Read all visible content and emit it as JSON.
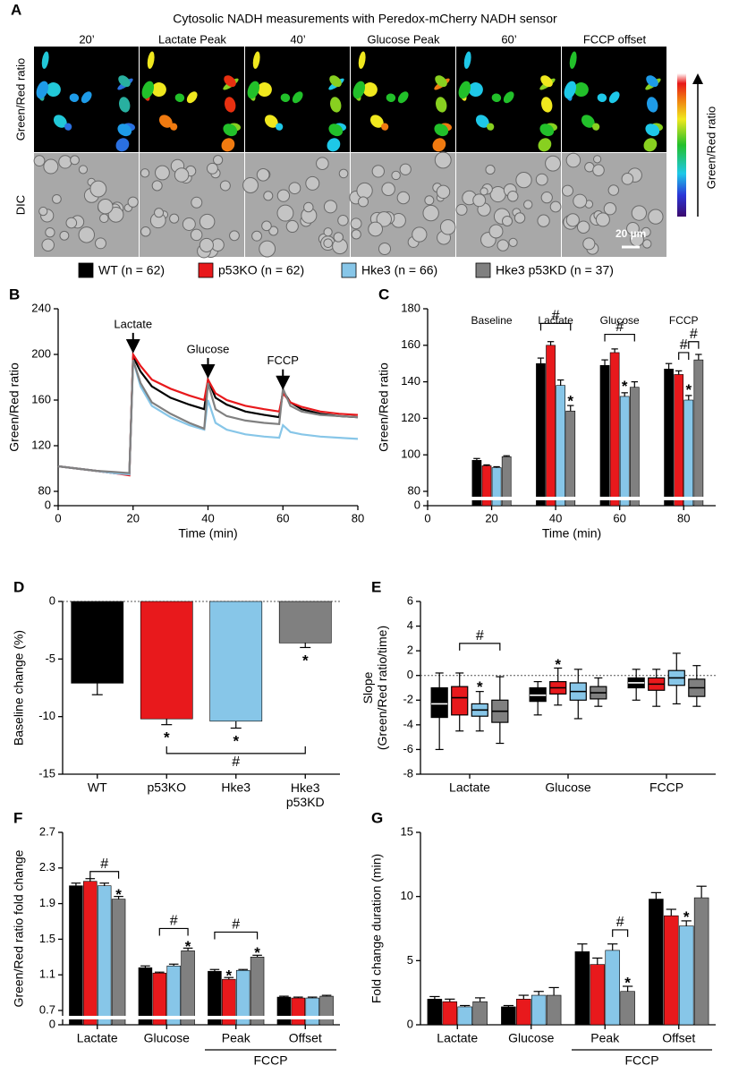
{
  "panel_a": {
    "label": "A",
    "title": "Cytosolic NADH measurements with Peredox-mCherry NADH sensor",
    "columns": [
      "20’",
      "Lactate Peak",
      "40’",
      "Glucose Peak",
      "60’",
      "FCCP offset"
    ],
    "rows": [
      "Green/Red ratio",
      "DIC"
    ],
    "scale_bar": "20 µm",
    "colorbar_label": "Green/Red ratio"
  },
  "legend": [
    {
      "name": "WT (n = 62)",
      "color": "#000000"
    },
    {
      "name": "p53KO (n = 62)",
      "color": "#e8191c"
    },
    {
      "name": "Hke3 (n = 66)",
      "color": "#87c6e8"
    },
    {
      "name": "Hke3 p53KD (n = 37)",
      "color": "#808080"
    }
  ],
  "chart_data": [
    {
      "type": "line",
      "panel": "B",
      "xlabel": "Time (min)",
      "ylabel": "Green/Red ratio",
      "x": [
        0,
        5,
        10,
        15,
        19,
        20,
        22,
        25,
        30,
        35,
        39,
        40,
        42,
        45,
        50,
        55,
        59,
        60,
        62,
        65,
        70,
        75,
        80
      ],
      "series": [
        {
          "values": [
            102,
            100,
            98,
            96,
            95,
            198,
            185,
            172,
            162,
            156,
            152,
            178,
            162,
            156,
            150,
            147,
            145,
            168,
            158,
            152,
            148,
            146,
            145
          ]
        },
        {
          "values": [
            102,
            100,
            98,
            96,
            94,
            200,
            190,
            178,
            170,
            164,
            160,
            178,
            166,
            160,
            155,
            152,
            150,
            166,
            158,
            154,
            150,
            148,
            147
          ]
        },
        {
          "values": [
            102,
            100,
            98,
            96,
            95,
            195,
            172,
            155,
            145,
            138,
            134,
            160,
            140,
            134,
            130,
            128,
            127,
            138,
            132,
            130,
            128,
            127,
            126
          ]
        },
        {
          "values": [
            102,
            100,
            98,
            97,
            96,
            195,
            175,
            158,
            148,
            140,
            135,
            175,
            152,
            146,
            142,
            140,
            139,
            170,
            155,
            150,
            147,
            146,
            145
          ]
        }
      ],
      "xlim": [
        0,
        80
      ],
      "xticks": [
        0,
        20,
        40,
        60,
        80
      ],
      "ylim": [
        0,
        240
      ],
      "ybreak": [
        0,
        80
      ],
      "yticks": [
        0,
        80,
        120,
        160,
        200,
        240
      ],
      "annotations": [
        {
          "text": "Lactate",
          "x": 20,
          "y": 204
        },
        {
          "text": "Glucose",
          "x": 40,
          "y": 182
        },
        {
          "text": "FCCP",
          "x": 60,
          "y": 172
        }
      ]
    },
    {
      "type": "bar",
      "panel": "C",
      "xlabel": "Time (min)",
      "ylabel": "Green/Red ratio",
      "categories": [
        "Baseline",
        "Lactate",
        "Glucose",
        "FCCP"
      ],
      "x": [
        20,
        40,
        60,
        80
      ],
      "series": [
        {
          "values": [
            97,
            150,
            149,
            147
          ],
          "errors": [
            1,
            3,
            3,
            3
          ]
        },
        {
          "values": [
            94,
            160,
            156,
            144
          ],
          "errors": [
            0.5,
            2,
            2,
            2
          ]
        },
        {
          "values": [
            93,
            138,
            132,
            130
          ],
          "errors": [
            0.5,
            3,
            2,
            2.5
          ]
        },
        {
          "values": [
            99,
            124,
            137,
            152
          ],
          "errors": [
            0.5,
            3,
            3,
            3
          ]
        }
      ],
      "xlim": [
        0,
        90
      ],
      "xticks": [
        0,
        20,
        40,
        60,
        80
      ],
      "ylim": [
        0,
        180
      ],
      "ybreak": [
        0,
        80
      ],
      "yticks": [
        0,
        80,
        100,
        120,
        140,
        160,
        180
      ],
      "stars": [
        {
          "text": "*",
          "group": 1,
          "series": 3,
          "y": 131
        },
        {
          "text": "*",
          "group": 2,
          "series": 2,
          "y": 139
        },
        {
          "text": "*",
          "group": 3,
          "series": 2,
          "y": 137
        }
      ],
      "brackets": [
        {
          "text": "#",
          "from": [
            1,
            0
          ],
          "to": [
            1,
            3
          ],
          "y": 172
        },
        {
          "text": "#",
          "from": [
            2,
            0
          ],
          "to": [
            2,
            3
          ],
          "y": 166
        },
        {
          "text": "#",
          "from": [
            3,
            1
          ],
          "to": [
            3,
            2
          ],
          "y": 156
        },
        {
          "text": "#",
          "from": [
            3,
            2
          ],
          "to": [
            3,
            3
          ],
          "y": 162
        }
      ]
    },
    {
      "type": "bar",
      "panel": "D",
      "ylabel": "Baseline change (%)",
      "color_by": "category",
      "categories": [
        "WT",
        "p53KO",
        "Hke3",
        [
          "Hke3",
          "p53KD"
        ]
      ],
      "series": [
        {
          "values": [
            -7.1,
            -10.2,
            -10.4,
            -3.6
          ],
          "errors": [
            1.0,
            0.5,
            0.6,
            0.4
          ]
        }
      ],
      "ylim": [
        -15,
        0
      ],
      "yticks": [
        -15,
        -10,
        -5,
        0
      ],
      "hline": 0,
      "stars": [
        {
          "text": "*",
          "group": 1,
          "series": 0,
          "y": -11.6
        },
        {
          "text": "*",
          "group": 2,
          "series": 0,
          "y": -11.9
        },
        {
          "text": "*",
          "group": 3,
          "series": 0,
          "y": -4.9
        }
      ],
      "brackets": [
        {
          "text": "#",
          "from": [
            1,
            0
          ],
          "to": [
            3,
            0
          ],
          "y": -13.2
        }
      ]
    },
    {
      "type": "box",
      "panel": "E",
      "ylabel": [
        "Slope",
        "(Green/Red ratio/time)"
      ],
      "categories": [
        "Lactate",
        "Glucose",
        "FCCP"
      ],
      "series": [
        {
          "min": [
            -6.0,
            -3.2,
            -2.0
          ],
          "q1": [
            -3.4,
            -2.1,
            -1.0
          ],
          "median": [
            -2.3,
            -1.6,
            -0.6
          ],
          "q3": [
            -1.0,
            -1.0,
            -0.2
          ],
          "max": [
            0.2,
            -0.5,
            0.5
          ]
        },
        {
          "min": [
            -4.5,
            -2.4,
            -2.5
          ],
          "q1": [
            -3.2,
            -1.5,
            -1.2
          ],
          "median": [
            -1.8,
            -1.0,
            -0.7
          ],
          "q3": [
            -0.9,
            -0.5,
            -0.2
          ],
          "max": [
            0.2,
            0.6,
            0.5
          ]
        },
        {
          "min": [
            -4.5,
            -3.5,
            -2.3
          ],
          "q1": [
            -3.3,
            -2.0,
            -0.8
          ],
          "median": [
            -2.8,
            -1.3,
            -0.2
          ],
          "q3": [
            -2.3,
            -0.6,
            0.4
          ],
          "max": [
            -1.3,
            0.5,
            1.8
          ]
        },
        {
          "min": [
            -5.5,
            -2.5,
            -2.5
          ],
          "q1": [
            -3.8,
            -1.9,
            -1.7
          ],
          "median": [
            -2.9,
            -1.4,
            -1.0
          ],
          "q3": [
            -2.0,
            -0.9,
            -0.3
          ],
          "max": [
            -0.1,
            -0.2,
            0.8
          ]
        }
      ],
      "ylim": [
        -8,
        6
      ],
      "yticks": [
        -8,
        -6,
        -4,
        -2,
        0,
        2,
        4,
        6
      ],
      "hline": 0,
      "stars": [
        {
          "text": "*",
          "group": 0,
          "series": 2,
          "y": -0.7
        },
        {
          "text": "*",
          "group": 1,
          "series": 1,
          "y": 1.1
        }
      ],
      "brackets": [
        {
          "text": "#",
          "from": [
            0,
            1
          ],
          "to": [
            0,
            3
          ],
          "y": 2.6
        }
      ]
    },
    {
      "type": "bar",
      "panel": "F",
      "ylabel": "Green/Red ratio fold change",
      "categories": [
        "Lactate",
        "Glucose",
        "Peak",
        "Offset"
      ],
      "group_labels": [
        {
          "text": "FCCP",
          "from": 2,
          "to": 3
        }
      ],
      "series": [
        {
          "values": [
            2.1,
            1.18,
            1.14,
            0.85
          ],
          "errors": [
            0.03,
            0.02,
            0.02,
            0.01
          ]
        },
        {
          "values": [
            2.15,
            1.12,
            1.05,
            0.84
          ],
          "errors": [
            0.03,
            0.01,
            0.02,
            0.01
          ]
        },
        {
          "values": [
            2.1,
            1.2,
            1.15,
            0.84
          ],
          "errors": [
            0.03,
            0.02,
            0.01,
            0.01
          ]
        },
        {
          "values": [
            1.95,
            1.37,
            1.3,
            0.86
          ],
          "errors": [
            0.03,
            0.03,
            0.02,
            0.01
          ]
        }
      ],
      "ylim": [
        0,
        2.7
      ],
      "ybreak": [
        0,
        0.7
      ],
      "yticks": [
        0,
        0.7,
        1.1,
        1.5,
        1.9,
        2.3,
        2.7
      ],
      "stars": [
        {
          "text": "*",
          "group": 0,
          "series": 3,
          "y": 2.03
        },
        {
          "text": "*",
          "group": 1,
          "series": 3,
          "y": 1.45
        },
        {
          "text": "*",
          "group": 2,
          "series": 1,
          "y": 1.12
        },
        {
          "text": "*",
          "group": 2,
          "series": 3,
          "y": 1.38
        }
      ],
      "brackets": [
        {
          "text": "#",
          "from": [
            0,
            1
          ],
          "to": [
            0,
            3
          ],
          "y": 2.26
        },
        {
          "text": "#",
          "from": [
            1,
            1
          ],
          "to": [
            1,
            3
          ],
          "y": 1.62
        },
        {
          "text": "#",
          "from": [
            2,
            0
          ],
          "to": [
            2,
            3
          ],
          "y": 1.58
        }
      ]
    },
    {
      "type": "bar",
      "panel": "G",
      "ylabel": "Fold change duration (min)",
      "categories": [
        "Lactate",
        "Glucose",
        "Peak",
        "Offset"
      ],
      "group_labels": [
        {
          "text": "FCCP",
          "from": 2,
          "to": 3
        }
      ],
      "series": [
        {
          "values": [
            2.0,
            1.4,
            5.7,
            9.8
          ],
          "errors": [
            0.2,
            0.1,
            0.6,
            0.5
          ]
        },
        {
          "values": [
            1.8,
            2.0,
            4.7,
            8.5
          ],
          "errors": [
            0.2,
            0.3,
            0.5,
            0.5
          ]
        },
        {
          "values": [
            1.4,
            2.3,
            5.8,
            7.7
          ],
          "errors": [
            0.1,
            0.3,
            0.5,
            0.4
          ]
        },
        {
          "values": [
            1.8,
            2.3,
            2.6,
            9.9
          ],
          "errors": [
            0.3,
            0.6,
            0.4,
            0.9
          ]
        }
      ],
      "ylim": [
        0,
        15
      ],
      "yticks": [
        0,
        5,
        10,
        15
      ],
      "stars": [
        {
          "text": "*",
          "group": 2,
          "series": 3,
          "y": 3.5
        },
        {
          "text": "*",
          "group": 3,
          "series": 2,
          "y": 8.6
        }
      ],
      "brackets": [
        {
          "text": "#",
          "from": [
            2,
            2
          ],
          "to": [
            2,
            3
          ],
          "y": 7.4
        }
      ]
    }
  ]
}
